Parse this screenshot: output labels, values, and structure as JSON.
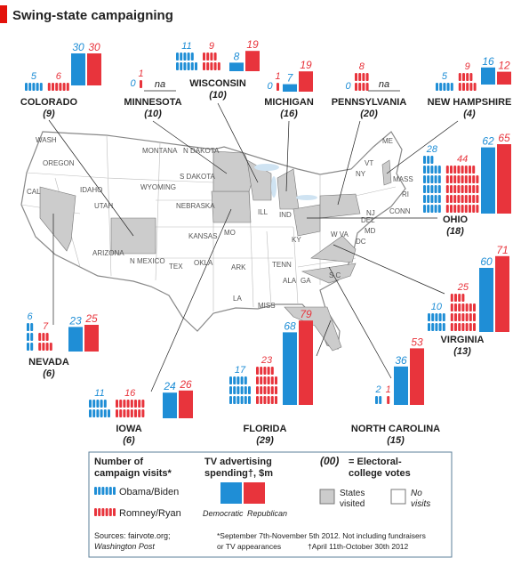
{
  "title": "Swing-state campaigning",
  "states": [
    {
      "name": "COLORADO",
      "electoral_votes": "(9)",
      "visits": {
        "obama": 5,
        "romney": 6
      },
      "tv": {
        "dem": 30,
        "rep": 30
      }
    },
    {
      "name": "MINNESOTA",
      "electoral_votes": "(10)",
      "visits": {
        "obama": 0,
        "romney": 1
      },
      "tv": {
        "label": "na"
      }
    },
    {
      "name": "WISCONSIN",
      "electoral_votes": "(10)",
      "visits": {
        "obama": 11,
        "romney": 9
      },
      "tv": {
        "dem": 8,
        "rep": 19
      }
    },
    {
      "name": "MICHIGAN",
      "electoral_votes": "(16)",
      "visits": {
        "obama": 0,
        "romney": 1
      },
      "tv": {
        "dem": 7,
        "rep": 19
      }
    },
    {
      "name": "PENNSYLVANIA",
      "electoral_votes": "(20)",
      "visits": {
        "obama": 0,
        "romney": 8
      },
      "tv": {
        "label": "na"
      }
    },
    {
      "name": "NEW HAMPSHIRE",
      "electoral_votes": "(4)",
      "visits": {
        "obama": 5,
        "romney": 9
      },
      "tv": {
        "dem": 16,
        "rep": 12
      }
    },
    {
      "name": "OHIO",
      "electoral_votes": "(18)",
      "visits": {
        "obama": 28,
        "romney": 44
      },
      "tv": {
        "dem": 62,
        "rep": 65
      }
    },
    {
      "name": "VIRGINIA",
      "electoral_votes": "(13)",
      "visits": {
        "obama": 10,
        "romney": 25
      },
      "tv": {
        "dem": 60,
        "rep": 71
      }
    },
    {
      "name": "NORTH CAROLINA",
      "electoral_votes": "(15)",
      "visits": {
        "obama": 2,
        "romney": 1
      },
      "tv": {
        "dem": 36,
        "rep": 53
      }
    },
    {
      "name": "FLORIDA",
      "electoral_votes": "(29)",
      "visits": {
        "obama": 17,
        "romney": 23
      },
      "tv": {
        "dem": 68,
        "rep": 79
      }
    },
    {
      "name": "IOWA",
      "electoral_votes": "(6)",
      "visits": {
        "obama": 11,
        "romney": 16
      },
      "tv": {
        "dem": 24,
        "rep": 26
      }
    },
    {
      "name": "NEVADA",
      "electoral_votes": "(6)",
      "visits": {
        "obama": 6,
        "romney": 7
      },
      "tv": {
        "dem": 23,
        "rep": 25
      }
    }
  ],
  "map_labels": [
    "WASH",
    "OREGON",
    "IDAHO",
    "CAL",
    "UTAH",
    "MONTANA",
    "N DAKOTA",
    "WYOMING",
    "S DAKOTA",
    "NEBRASKA",
    "KANSAS",
    "ARIZONA",
    "N MEXICO",
    "TEX",
    "OKLA",
    "MO",
    "ILL",
    "ARK",
    "LA",
    "MISS",
    "TENN",
    "KY",
    "ALA",
    "GA",
    "S C",
    "IND",
    "W VA",
    "MD",
    "DEL",
    "DC",
    "NJ",
    "CONN",
    "RI",
    "MASS",
    "NY",
    "VT",
    "ME"
  ],
  "legend": {
    "visits_title": [
      "Number of",
      "campaign visits*"
    ],
    "obama": "Obama/Biden",
    "romney": "Romney/Ryan",
    "tv_title": [
      "TV advertising",
      "spending†, $m"
    ],
    "democratic": "Democratic",
    "republican": "Republican",
    "electoral_key": "(00)",
    "electoral_text": [
      "= Electoral-",
      "college votes"
    ],
    "visited": [
      "States",
      "visited"
    ],
    "not_visited": [
      "No",
      "visits"
    ]
  },
  "sources": [
    "Sources: fairvote.org;",
    "Washington Post"
  ],
  "footnote": [
    "*September 7th-November 5th 2012. Not including fundraisers",
    "or TV appearances",
    "†April 11th-October 30th 2012"
  ]
}
